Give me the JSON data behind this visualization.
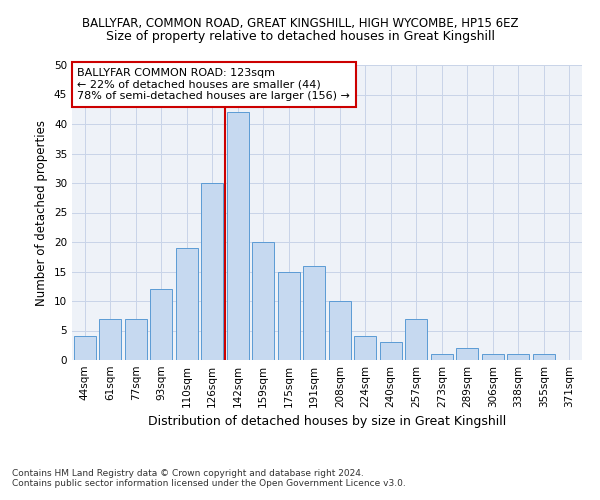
{
  "title1": "BALLYFAR, COMMON ROAD, GREAT KINGSHILL, HIGH WYCOMBE, HP15 6EZ",
  "title2": "Size of property relative to detached houses in Great Kingshill",
  "xlabel": "Distribution of detached houses by size in Great Kingshill",
  "ylabel": "Number of detached properties",
  "categories": [
    "44sqm",
    "61sqm",
    "77sqm",
    "93sqm",
    "110sqm",
    "126sqm",
    "142sqm",
    "159sqm",
    "175sqm",
    "191sqm",
    "208sqm",
    "224sqm",
    "240sqm",
    "257sqm",
    "273sqm",
    "289sqm",
    "306sqm",
    "338sqm",
    "355sqm",
    "371sqm"
  ],
  "values": [
    4,
    7,
    7,
    12,
    19,
    30,
    42,
    20,
    15,
    16,
    10,
    4,
    3,
    7,
    1,
    2,
    1,
    1,
    1,
    0
  ],
  "bar_color": "#c6d9f0",
  "bar_edge_color": "#5b9bd5",
  "grid_color": "#c8d4e8",
  "background_color": "#eef2f8",
  "vline_color": "#cc0000",
  "vline_x_index": 5,
  "annotation_text": "BALLYFAR COMMON ROAD: 123sqm\n← 22% of detached houses are smaller (44)\n78% of semi-detached houses are larger (156) →",
  "annotation_box_color": "#ffffff",
  "annotation_box_edge": "#cc0000",
  "ylim": [
    0,
    50
  ],
  "yticks": [
    0,
    5,
    10,
    15,
    20,
    25,
    30,
    35,
    40,
    45,
    50
  ],
  "footer1": "Contains HM Land Registry data © Crown copyright and database right 2024.",
  "footer2": "Contains public sector information licensed under the Open Government Licence v3.0.",
  "title1_fontsize": 8.5,
  "title2_fontsize": 9.0,
  "xlabel_fontsize": 9.0,
  "ylabel_fontsize": 8.5,
  "tick_fontsize": 7.5,
  "annotation_fontsize": 8.0,
  "footer_fontsize": 6.5
}
